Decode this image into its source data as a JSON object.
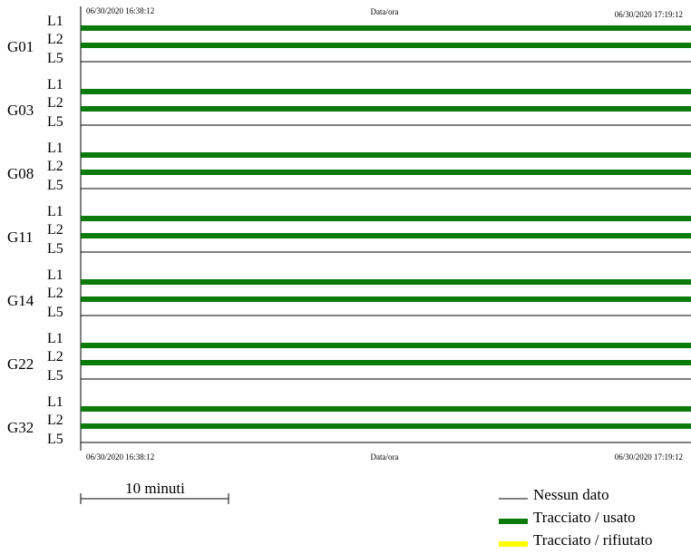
{
  "chart_data": {
    "type": "timeline",
    "time_axis": {
      "label": "Data/ora",
      "start": "06/30/2020 16:38:12",
      "end": "06/30/2020 17:19:12"
    },
    "satellites": [
      {
        "name": "G01",
        "signals": [
          {
            "name": "L1",
            "status": "Tracciato / usato"
          },
          {
            "name": "L2",
            "status": "Tracciato / usato"
          },
          {
            "name": "L5",
            "status": "Nessun dato"
          }
        ]
      },
      {
        "name": "G03",
        "signals": [
          {
            "name": "L1",
            "status": "Tracciato / usato"
          },
          {
            "name": "L2",
            "status": "Tracciato / usato"
          },
          {
            "name": "L5",
            "status": "Nessun dato"
          }
        ]
      },
      {
        "name": "G08",
        "signals": [
          {
            "name": "L1",
            "status": "Tracciato / usato"
          },
          {
            "name": "L2",
            "status": "Tracciato / usato"
          },
          {
            "name": "L5",
            "status": "Nessun dato"
          }
        ]
      },
      {
        "name": "G11",
        "signals": [
          {
            "name": "L1",
            "status": "Tracciato / usato"
          },
          {
            "name": "L2",
            "status": "Tracciato / usato"
          },
          {
            "name": "L5",
            "status": "Nessun dato"
          }
        ]
      },
      {
        "name": "G14",
        "signals": [
          {
            "name": "L1",
            "status": "Tracciato / usato"
          },
          {
            "name": "L2",
            "status": "Tracciato / usato"
          },
          {
            "name": "L5",
            "status": "Nessun dato"
          }
        ]
      },
      {
        "name": "G22",
        "signals": [
          {
            "name": "L1",
            "status": "Tracciato / usato"
          },
          {
            "name": "L2",
            "status": "Tracciato / usato"
          },
          {
            "name": "L5",
            "status": "Nessun dato"
          }
        ]
      },
      {
        "name": "G32",
        "signals": [
          {
            "name": "L1",
            "status": "Tracciato / usato"
          },
          {
            "name": "L2",
            "status": "Tracciato / usato"
          },
          {
            "name": "L5",
            "status": "Nessun dato"
          }
        ]
      }
    ],
    "scale_bar": {
      "label": "10 minuti",
      "minutes": 10
    },
    "legend": [
      {
        "label": "Nessun dato",
        "color": "#000000",
        "style": "thin"
      },
      {
        "label": "Tracciato / usato",
        "color": "#0a7a0a",
        "style": "thick"
      },
      {
        "label": "Tracciato / rifiutato",
        "color": "#ffff00",
        "style": "thick"
      }
    ]
  }
}
